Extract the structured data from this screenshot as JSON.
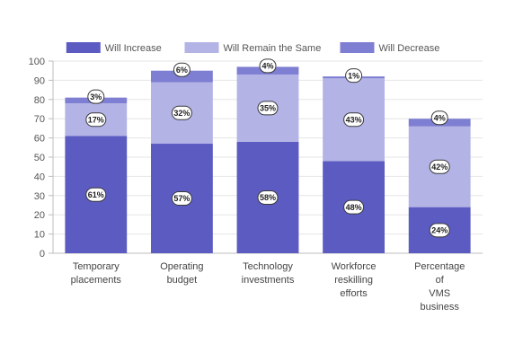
{
  "chart_data": {
    "type": "bar",
    "stacked": true,
    "categories": [
      [
        "Temporary",
        "placements"
      ],
      [
        "Operating",
        "budget"
      ],
      [
        "Technology",
        "investments"
      ],
      [
        "Workforce",
        "reskilling",
        "efforts"
      ],
      [
        "Percentage",
        "of",
        "VMS",
        "business"
      ]
    ],
    "series": [
      {
        "name": "Will Increase",
        "color": "#5b5bc2",
        "values": [
          61,
          57,
          58,
          48,
          24
        ],
        "labels": [
          "61%",
          "57%",
          "58%",
          "48%",
          "24%"
        ]
      },
      {
        "name": "Will Remain the Same",
        "color": "#b3b3e6",
        "values": [
          17,
          32,
          35,
          43,
          42
        ],
        "labels": [
          "17%",
          "32%",
          "35%",
          "43%",
          "42%"
        ]
      },
      {
        "name": "Will Decrease",
        "color": "#7e7ed3",
        "values": [
          3,
          6,
          4,
          1,
          4
        ],
        "labels": [
          "3%",
          "6%",
          "4%",
          "1%",
          "4%"
        ]
      }
    ],
    "yticks": [
      0,
      10,
      20,
      30,
      40,
      50,
      60,
      70,
      80,
      90,
      100
    ],
    "ylim": [
      0,
      100
    ],
    "grid": true,
    "legend_position": "top"
  }
}
